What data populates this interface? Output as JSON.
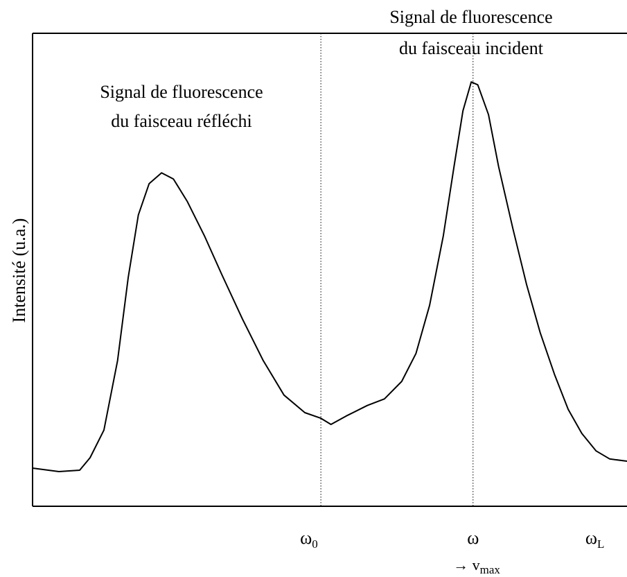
{
  "chart_data": {
    "type": "line",
    "ylabel": "Intensité (u.a.)",
    "annotations": [
      {
        "lines": [
          "Signal de fluorescence",
          "du faisceau réfléchi"
        ]
      },
      {
        "lines": [
          "Signal de fluorescence",
          "du faisceau incident"
        ]
      },
      {
        "text": "→ v",
        "subscript": "max"
      }
    ],
    "x": [
      0,
      4.43,
      7.93,
      9.67,
      12.0,
      14.3,
      16.1,
      17.8,
      19.6,
      21.7,
      23.7,
      26.0,
      28.9,
      31.8,
      35.3,
      38.8,
      42.3,
      45.8,
      48.5,
      50.2,
      52.8,
      56.3,
      59.2,
      62.1,
      64.5,
      66.8,
      69.1,
      70.9,
      72.4,
      73.8,
      74.9,
      76.7,
      78.4,
      80.8,
      83.1,
      85.4,
      87.8,
      90.1,
      92.4,
      94.8,
      97.1,
      100
    ],
    "values": [
      8.06,
      7.33,
      7.62,
      10.26,
      16.1,
      30.8,
      48.4,
      61.6,
      68.2,
      70.5,
      69.2,
      64.5,
      57.2,
      49.1,
      39.6,
      30.8,
      23.5,
      19.8,
      18.6,
      17.3,
      19.1,
      21.3,
      22.7,
      26.4,
      32.3,
      42.5,
      57.2,
      71.8,
      83.6,
      89.7,
      89.1,
      82.8,
      71.8,
      58.7,
      46.9,
      36.7,
      27.9,
      20.5,
      15.4,
      11.7,
      10.0,
      9.53
    ],
    "color": "#000000",
    "xlim": [
      0,
      100
    ],
    "ylim": [
      0,
      100
    ],
    "xticks": [
      {
        "value": 46.5,
        "label": "ω",
        "subscript": "0"
      },
      {
        "value": 74.1,
        "label": "ω"
      },
      {
        "value": 94.6,
        "label": "ω",
        "subscript": "L"
      }
    ],
    "vlines": [
      48.5,
      74.1
    ]
  }
}
